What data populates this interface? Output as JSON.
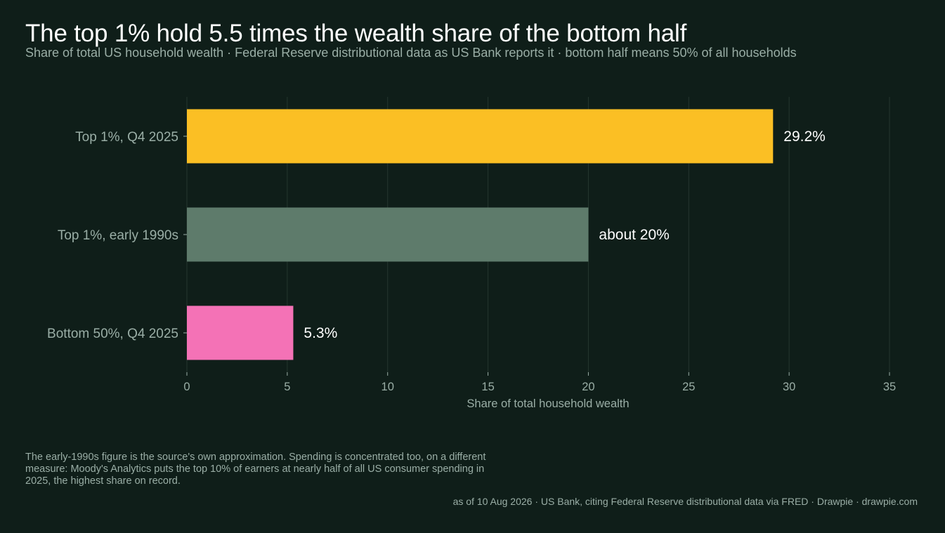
{
  "title": "The top 1% hold 5.5 times the wealth share of the bottom half",
  "subtitle": "Share of total US household wealth · Federal Reserve distributional data as US Bank reports it · bottom half means 50% of all households",
  "note": "The early-1990s figure is the source's own approximation. Spending is concentrated too, on a different measure: Moody's Analytics puts the top 10% of earners at nearly half of all US consumer spending in 2025, the highest share on record.",
  "footer": "as of 10 Aug 2026  ·  US Bank, citing Federal Reserve distributional data via FRED  ·  Drawpie · drawpie.com",
  "chart_data": {
    "type": "bar",
    "orientation": "horizontal",
    "categories": [
      "Top 1%, Q4 2025",
      "Top 1%, early 1990s",
      "Bottom 50%, Q4 2025"
    ],
    "values": [
      29.2,
      20,
      5.3
    ],
    "data_labels": [
      "29.2%",
      "about 20%",
      "5.3%"
    ],
    "colors": [
      "#fbbf24",
      "#5e7b6b",
      "#f472b6"
    ],
    "xlabel": "Share of total household wealth",
    "ylabel": "",
    "xlim": [
      0,
      35
    ],
    "xticks": [
      0,
      5,
      10,
      15,
      20,
      25,
      30,
      35
    ],
    "grid": true
  },
  "colors": {
    "background": "#0f1e19",
    "text": "#ffffff",
    "muted_text": "#9aaea6",
    "gridline": "#25362f"
  }
}
